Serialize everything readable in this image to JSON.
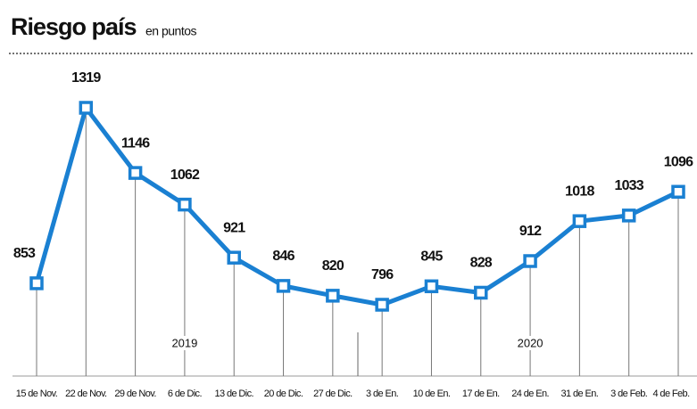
{
  "chart_data": {
    "type": "line",
    "title": "Riesgo país",
    "subtitle": "en puntos",
    "categories": [
      "15 de Nov.",
      "22 de Nov.",
      "29 de Nov.",
      "6 de Dic.",
      "13 de Dic.",
      "20 de Dic.",
      "27 de Dic.",
      "3 de En.",
      "10 de En.",
      "17 de En.",
      "24 de En.",
      "31 de En.",
      "3 de Feb.",
      "4 de Feb."
    ],
    "values": [
      853,
      1319,
      1146,
      1062,
      921,
      846,
      820,
      796,
      845,
      828,
      912,
      1018,
      1033,
      1096
    ],
    "color": "#1a80d2",
    "annotations": [
      {
        "text": "2019",
        "category": "6 de Dic."
      },
      {
        "text": "2020",
        "category": "24 de En."
      }
    ]
  }
}
